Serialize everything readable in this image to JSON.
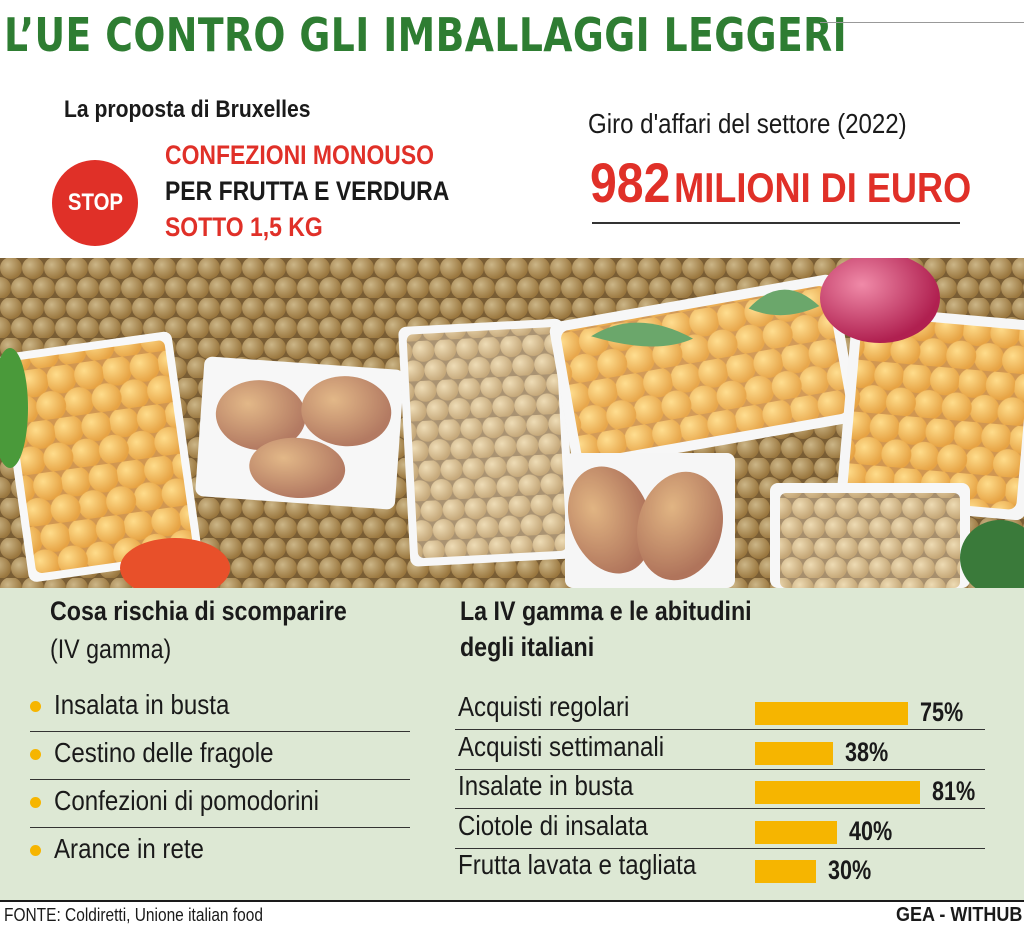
{
  "title": "L’UE CONTRO GLI IMBALLAGGI LEGGERI",
  "proposal": {
    "heading": "La proposta di Bruxelles",
    "stop_label": "STOP",
    "line1": "CONFEZIONI MONOUSO",
    "line2": "PER FRUTTA E VERDURA",
    "line3": "SOTTO 1,5 KG"
  },
  "turnover": {
    "label": "Giro d'affari del settore (2022)",
    "value": "982",
    "unit": "MILIONI DI EURO"
  },
  "risk": {
    "title": "Cosa rischia di scomparire",
    "subtitle": "(IV gamma)",
    "items": [
      "Insalata in busta",
      "Cestino delle fragole",
      "Confezioni di pomodorini",
      "Arance in rete"
    ]
  },
  "chart_data": {
    "type": "bar",
    "orientation": "horizontal",
    "title": "La IV gamma e le abitudini degli italiani",
    "title_line1": "La IV gamma e le abitudini",
    "title_line2": "degli italiani",
    "categories": [
      "Acquisti regolari",
      "Acquisti settimanali",
      "Insalate in busta",
      "Ciotole di insalata",
      "Frutta lavata e tagliata"
    ],
    "values": [
      75,
      38,
      81,
      40,
      30
    ],
    "value_labels": [
      "75%",
      "38%",
      "81%",
      "40%",
      "30%"
    ],
    "unit": "%",
    "bar_color": "#f6b500"
  },
  "footer": {
    "source": "FONTE: Coldiretti, Unione italian food",
    "credit": "GEA - WITHUB"
  },
  "colors": {
    "title_green": "#2e7d32",
    "accent_red": "#e03028",
    "panel_bg": "#dde8d4",
    "bullet": "#f6b500"
  }
}
